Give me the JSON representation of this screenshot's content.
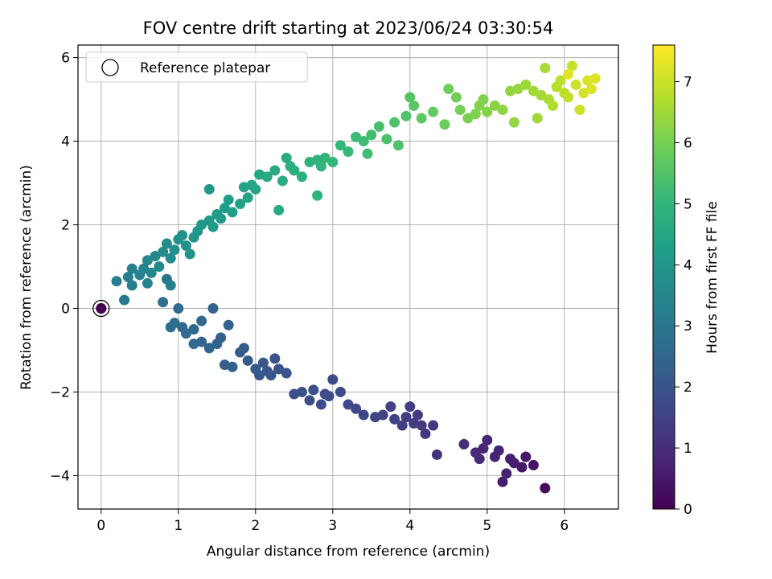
{
  "chart_data": {
    "type": "scatter",
    "title": "FOV centre drift starting at 2023/06/24 03:30:54",
    "xlabel": "Angular distance from reference (arcmin)",
    "ylabel": "Rotation from reference (arcmin)",
    "xlim": [
      -0.3,
      6.7
    ],
    "ylim": [
      -4.8,
      6.3
    ],
    "xticks": [
      0,
      1,
      2,
      3,
      4,
      5,
      6
    ],
    "yticks": [
      -4,
      -2,
      0,
      2,
      4,
      6
    ],
    "xtick_labels": [
      "0",
      "1",
      "2",
      "3",
      "4",
      "5",
      "6"
    ],
    "ytick_labels": [
      "−4",
      "−2",
      "0",
      "2",
      "4",
      "6"
    ],
    "grid": true,
    "legend": {
      "position": "top-left",
      "entries": [
        "Reference platepar"
      ]
    },
    "colorbar": {
      "label": "Hours from first FF file",
      "range": [
        0,
        7.6
      ],
      "ticks": [
        0,
        1,
        2,
        3,
        4,
        5,
        6,
        7
      ],
      "tick_labels": [
        "0",
        "1",
        "2",
        "3",
        "4",
        "5",
        "6",
        "7"
      ],
      "colormap": "viridis"
    },
    "colormap_stops": [
      "#440154",
      "#482878",
      "#3e4989",
      "#31688e",
      "#26828e",
      "#1f9e89",
      "#35b779",
      "#6ece58",
      "#b5de2b",
      "#fde725"
    ],
    "reference_point": {
      "x": 0,
      "y": 0,
      "hours": 0
    },
    "series": [
      {
        "points": [
          [
            0,
            0,
            0
          ],
          [
            5.75,
            -4.3,
            0.2
          ],
          [
            5.6,
            -3.75,
            0.4
          ],
          [
            5.5,
            -3.55,
            0.5
          ],
          [
            5.45,
            -3.8,
            0.5
          ],
          [
            5.3,
            -3.6,
            0.6
          ],
          [
            5.2,
            -4.15,
            0.6
          ],
          [
            5.25,
            -3.95,
            0.7
          ],
          [
            5.1,
            -3.55,
            0.7
          ],
          [
            5.0,
            -3.15,
            0.8
          ],
          [
            4.95,
            -3.35,
            0.8
          ],
          [
            4.9,
            -3.6,
            0.9
          ],
          [
            4.85,
            -3.45,
            0.9
          ],
          [
            4.7,
            -3.25,
            1.0
          ],
          [
            5.35,
            -3.7,
            0.6
          ],
          [
            5.15,
            -3.4,
            0.75
          ],
          [
            4.35,
            -3.5,
            1.1
          ],
          [
            4.3,
            -2.8,
            1.2
          ],
          [
            4.2,
            -3.0,
            1.2
          ],
          [
            4.15,
            -2.8,
            1.3
          ],
          [
            4.1,
            -2.55,
            1.3
          ],
          [
            4.05,
            -2.75,
            1.35
          ],
          [
            4.0,
            -2.35,
            1.4
          ],
          [
            3.95,
            -2.6,
            1.4
          ],
          [
            3.9,
            -2.8,
            1.45
          ],
          [
            3.8,
            -2.65,
            1.5
          ],
          [
            3.75,
            -2.35,
            1.5
          ],
          [
            3.65,
            -2.55,
            1.55
          ],
          [
            3.55,
            -2.6,
            1.6
          ],
          [
            3.4,
            -2.55,
            1.6
          ],
          [
            3.3,
            -2.4,
            1.65
          ],
          [
            3.2,
            -2.3,
            1.7
          ],
          [
            3.1,
            -2.0,
            1.7
          ],
          [
            3.0,
            -1.7,
            1.75
          ],
          [
            2.95,
            -2.1,
            1.75
          ],
          [
            2.9,
            -2.05,
            1.8
          ],
          [
            2.85,
            -2.3,
            1.8
          ],
          [
            2.75,
            -1.95,
            1.85
          ],
          [
            2.7,
            -2.2,
            1.85
          ],
          [
            2.6,
            -2.0,
            1.9
          ],
          [
            2.5,
            -2.05,
            1.9
          ],
          [
            2.4,
            -1.55,
            1.95
          ],
          [
            2.3,
            -1.45,
            2.0
          ],
          [
            2.25,
            -1.2,
            2.0
          ],
          [
            2.2,
            -1.6,
            2.05
          ],
          [
            2.15,
            -1.5,
            2.05
          ],
          [
            2.1,
            -1.3,
            2.1
          ],
          [
            2.05,
            -1.6,
            2.1
          ],
          [
            2.0,
            -1.45,
            2.15
          ],
          [
            1.9,
            -1.25,
            2.2
          ],
          [
            1.85,
            -0.95,
            2.2
          ],
          [
            1.8,
            -1.05,
            2.25
          ],
          [
            1.7,
            -1.4,
            2.3
          ],
          [
            1.6,
            -1.35,
            2.3
          ],
          [
            1.55,
            -0.7,
            2.35
          ],
          [
            1.5,
            -0.85,
            2.4
          ],
          [
            1.4,
            -0.95,
            2.45
          ],
          [
            1.3,
            -0.8,
            2.5
          ],
          [
            1.2,
            -0.85,
            2.55
          ],
          [
            1.1,
            -0.6,
            2.6
          ],
          [
            1.05,
            -0.45,
            2.6
          ],
          [
            0.95,
            -0.35,
            2.65
          ],
          [
            0.9,
            -0.45,
            2.7
          ],
          [
            0.8,
            0.15,
            2.75
          ],
          [
            1.0,
            0.0,
            2.7
          ],
          [
            1.45,
            0.0,
            2.4
          ],
          [
            1.3,
            -0.3,
            2.5
          ],
          [
            1.2,
            -0.5,
            2.55
          ],
          [
            1.65,
            -0.4,
            2.35
          ],
          [
            0.85,
            0.7,
            3.0
          ],
          [
            0.3,
            0.2,
            3.1
          ],
          [
            0.2,
            0.65,
            3.2
          ],
          [
            0.35,
            0.75,
            3.3
          ],
          [
            0.4,
            0.55,
            3.3
          ],
          [
            0.5,
            0.8,
            3.4
          ],
          [
            0.55,
            0.95,
            3.45
          ],
          [
            0.6,
            1.15,
            3.5
          ],
          [
            0.65,
            0.85,
            3.5
          ],
          [
            0.7,
            1.25,
            3.55
          ],
          [
            0.75,
            1.0,
            3.6
          ],
          [
            0.8,
            1.35,
            3.65
          ],
          [
            0.85,
            1.55,
            3.7
          ],
          [
            0.9,
            1.2,
            3.7
          ],
          [
            0.95,
            1.4,
            3.75
          ],
          [
            1.0,
            1.65,
            3.8
          ],
          [
            1.05,
            1.75,
            3.85
          ],
          [
            1.1,
            1.5,
            3.85
          ],
          [
            1.15,
            1.3,
            3.9
          ],
          [
            1.2,
            1.7,
            3.95
          ],
          [
            1.25,
            1.85,
            3.95
          ],
          [
            1.3,
            2.0,
            4.0
          ],
          [
            1.4,
            2.1,
            4.05
          ],
          [
            1.45,
            1.95,
            4.1
          ],
          [
            1.5,
            2.25,
            4.1
          ],
          [
            1.55,
            2.15,
            4.15
          ],
          [
            1.6,
            2.4,
            4.2
          ],
          [
            1.65,
            2.6,
            4.25
          ],
          [
            1.7,
            2.3,
            4.25
          ],
          [
            1.8,
            2.5,
            4.3
          ],
          [
            1.85,
            2.9,
            4.35
          ],
          [
            1.9,
            2.65,
            4.4
          ],
          [
            1.95,
            2.95,
            4.45
          ],
          [
            2.0,
            2.85,
            4.45
          ],
          [
            2.05,
            3.2,
            4.5
          ],
          [
            2.15,
            3.15,
            4.55
          ],
          [
            2.25,
            3.3,
            4.6
          ],
          [
            2.3,
            2.35,
            4.6
          ],
          [
            2.35,
            3.05,
            4.65
          ],
          [
            2.4,
            3.6,
            4.7
          ],
          [
            2.45,
            3.4,
            4.75
          ],
          [
            2.5,
            3.3,
            4.75
          ],
          [
            2.6,
            3.15,
            4.8
          ],
          [
            2.7,
            3.5,
            4.85
          ],
          [
            2.8,
            3.55,
            4.9
          ],
          [
            2.85,
            3.4,
            4.9
          ],
          [
            2.9,
            3.6,
            4.95
          ],
          [
            3.0,
            3.5,
            5.0
          ],
          [
            3.1,
            3.9,
            5.05
          ],
          [
            3.2,
            3.75,
            5.1
          ],
          [
            3.3,
            4.1,
            5.15
          ],
          [
            3.4,
            4.0,
            5.2
          ],
          [
            3.45,
            3.7,
            5.25
          ],
          [
            3.5,
            4.15,
            5.3
          ],
          [
            3.6,
            4.35,
            5.35
          ],
          [
            3.7,
            4.05,
            5.4
          ],
          [
            3.8,
            4.45,
            5.45
          ],
          [
            3.85,
            3.9,
            5.45
          ],
          [
            3.95,
            4.6,
            5.5
          ],
          [
            4.0,
            5.05,
            5.55
          ],
          [
            4.05,
            4.85,
            5.6
          ],
          [
            1.4,
            2.85,
            4.05
          ],
          [
            2.8,
            2.7,
            4.9
          ],
          [
            0.9,
            0.55,
            3.35
          ],
          [
            0.6,
            0.6,
            3.45
          ],
          [
            0.4,
            0.95,
            3.3
          ],
          [
            4.15,
            4.55,
            5.7
          ],
          [
            4.3,
            4.7,
            5.75
          ],
          [
            4.45,
            4.4,
            5.85
          ],
          [
            4.5,
            5.25,
            5.9
          ],
          [
            4.6,
            5.05,
            5.95
          ],
          [
            4.65,
            4.75,
            6.0
          ],
          [
            4.75,
            4.55,
            6.05
          ],
          [
            4.85,
            4.65,
            6.1
          ],
          [
            4.9,
            4.85,
            6.15
          ],
          [
            4.95,
            5.0,
            6.15
          ],
          [
            5.0,
            4.7,
            6.2
          ],
          [
            5.1,
            4.85,
            6.25
          ],
          [
            5.2,
            4.75,
            6.3
          ],
          [
            5.3,
            5.2,
            6.35
          ],
          [
            5.35,
            4.45,
            6.35
          ],
          [
            5.4,
            5.25,
            6.4
          ],
          [
            5.5,
            5.35,
            6.45
          ],
          [
            5.6,
            5.2,
            6.5
          ],
          [
            5.65,
            4.55,
            6.5
          ],
          [
            5.7,
            5.1,
            6.55
          ],
          [
            5.75,
            5.75,
            6.6
          ],
          [
            5.8,
            5.0,
            6.65
          ],
          [
            5.85,
            4.85,
            6.7
          ],
          [
            5.9,
            5.3,
            6.75
          ],
          [
            5.95,
            5.45,
            6.8
          ],
          [
            6.0,
            5.15,
            6.85
          ],
          [
            6.05,
            5.05,
            6.9
          ],
          [
            6.1,
            5.8,
            6.95
          ],
          [
            6.15,
            5.35,
            7.0
          ],
          [
            6.2,
            4.75,
            7.05
          ],
          [
            6.25,
            5.15,
            7.1
          ],
          [
            6.3,
            5.45,
            7.15
          ],
          [
            6.35,
            5.25,
            7.2
          ],
          [
            6.4,
            5.5,
            7.25
          ],
          [
            6.05,
            5.6,
            7.3
          ]
        ]
      }
    ]
  }
}
